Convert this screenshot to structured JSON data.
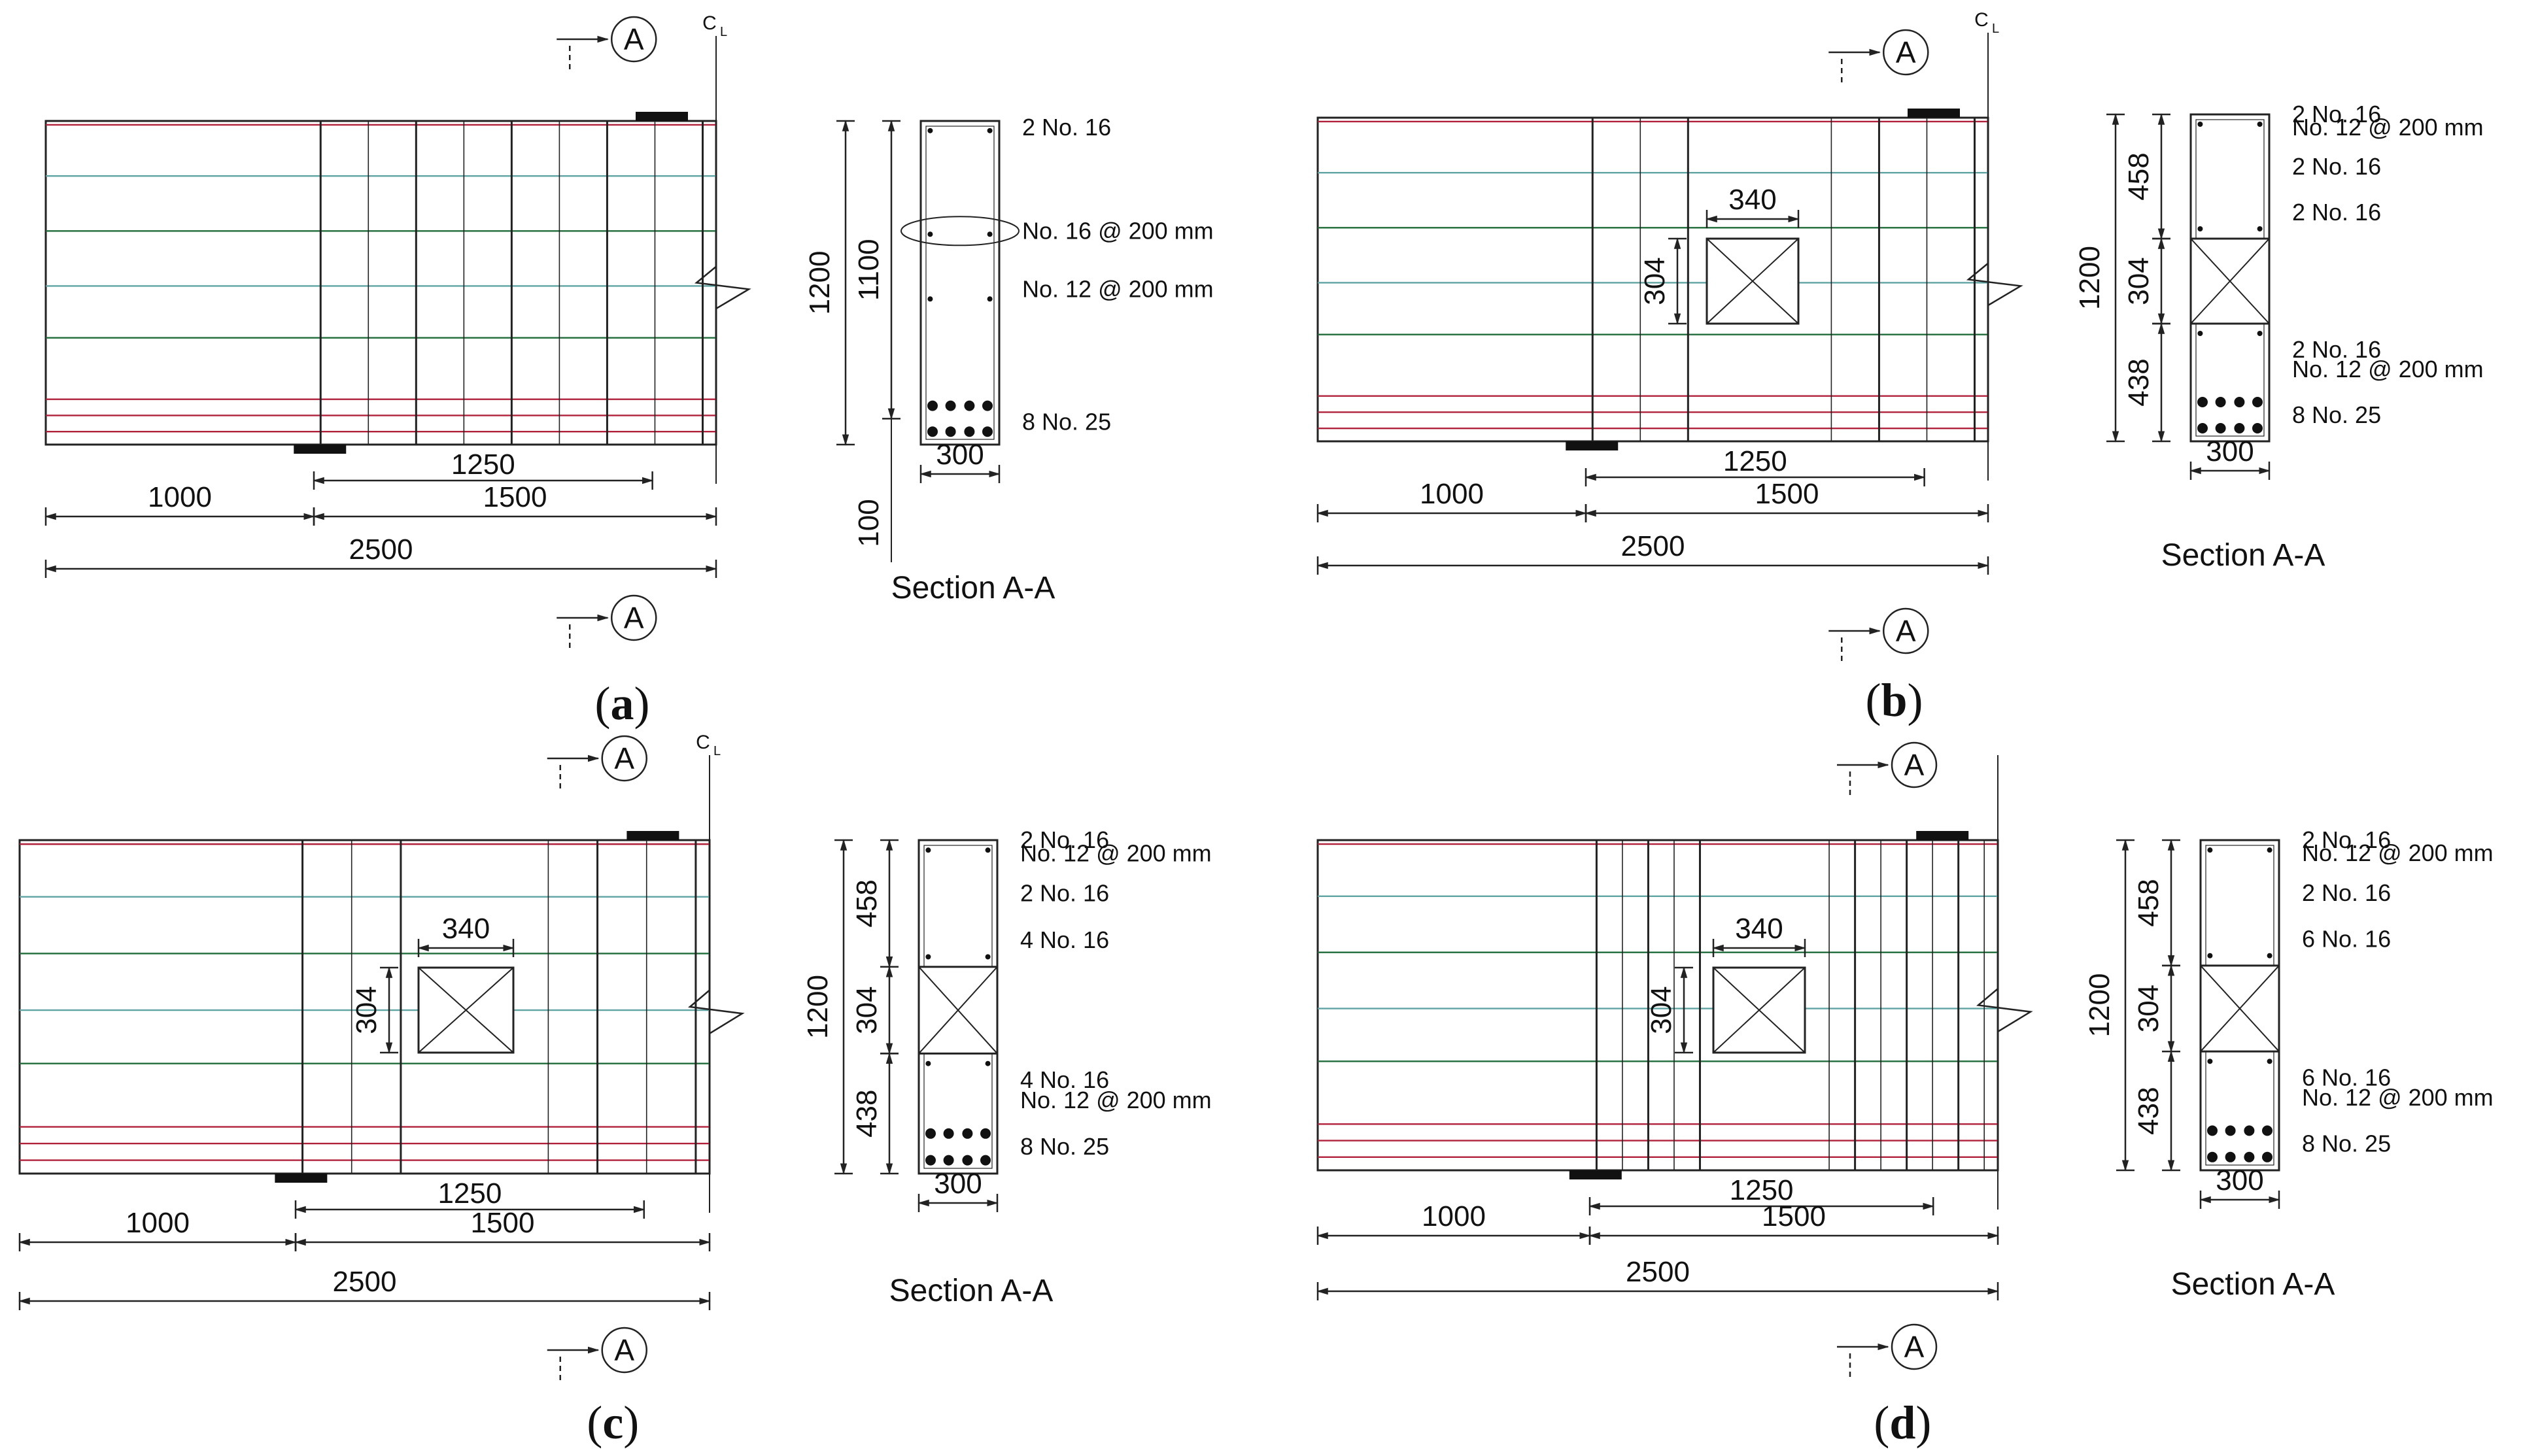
{
  "figure_title": "Beam reinforcement details (a)-(d)",
  "panels": [
    {
      "id": "a",
      "caption_letter": "a",
      "section_marker": "A",
      "centerline_label": "C",
      "centerline_sub": "L",
      "section_title": "Section A-A",
      "opening": null,
      "dims": {
        "span_total": "2500",
        "support_to_end": "1000",
        "shear_zone": "1500",
        "stirrup_zone": "1250",
        "section_height": "1200",
        "effective_depth": "1100",
        "cover": "100",
        "section_width": "300"
      },
      "bar_labels": [
        "2 No. 16",
        "No. 16 @ 200 mm",
        "No. 12 @ 200 mm",
        "8 No. 25"
      ]
    },
    {
      "id": "b",
      "caption_letter": "b",
      "section_marker": "A",
      "centerline_label": "C",
      "centerline_sub": "L",
      "section_title": "Section A-A",
      "opening": {
        "width": "340",
        "height": "304"
      },
      "dims": {
        "span_total": "2500",
        "support_to_end": "1000",
        "shear_zone": "1500",
        "stirrup_zone": "1250",
        "section_height": "1200",
        "top_chord": "458",
        "opening_height": "304",
        "bottom_chord": "438",
        "section_width": "300"
      },
      "bar_labels": [
        "2 No. 16",
        "No. 12 @ 200 mm",
        "2 No. 16",
        "2 No. 16",
        "2 No. 16",
        "No. 12 @ 200 mm",
        "8 No. 25"
      ]
    },
    {
      "id": "c",
      "caption_letter": "c",
      "section_marker": "A",
      "centerline_label": "C",
      "centerline_sub": "L",
      "section_title": "Section A-A",
      "opening": {
        "width": "340",
        "height": "304"
      },
      "dims": {
        "span_total": "2500",
        "support_to_end": "1000",
        "shear_zone": "1500",
        "stirrup_zone": "1250",
        "section_height": "1200",
        "top_chord": "458",
        "opening_height": "304",
        "bottom_chord": "438",
        "section_width": "300"
      },
      "bar_labels": [
        "2 No. 16",
        "No. 12 @ 200 mm",
        "2 No. 16",
        "4 No. 16",
        "4 No. 16",
        "No. 12 @ 200 mm",
        "8 No. 25"
      ]
    },
    {
      "id": "d",
      "caption_letter": "d",
      "section_marker": "A",
      "centerline_label": "",
      "centerline_sub": "",
      "section_title": "Section A-A",
      "opening": {
        "width": "340",
        "height": "304"
      },
      "dims": {
        "span_total": "2500",
        "support_to_end": "1000",
        "shear_zone": "1500",
        "stirrup_zone": "1250",
        "section_height": "1200",
        "top_chord": "458",
        "opening_height": "304",
        "bottom_chord": "438",
        "section_width": "300"
      },
      "bar_labels": [
        "2 No. 16",
        "No. 12 @ 200 mm",
        "2 No. 16",
        "6 No. 16",
        "6 No. 16",
        "No. 12 @ 200 mm",
        "8 No. 25"
      ]
    }
  ],
  "colors": {
    "line": "#222222",
    "red_rebar": "#b0203a",
    "green_rebar": "#1f6b3a",
    "teal_rebar": "#5fa3a3",
    "bar_dot": "#111111"
  }
}
